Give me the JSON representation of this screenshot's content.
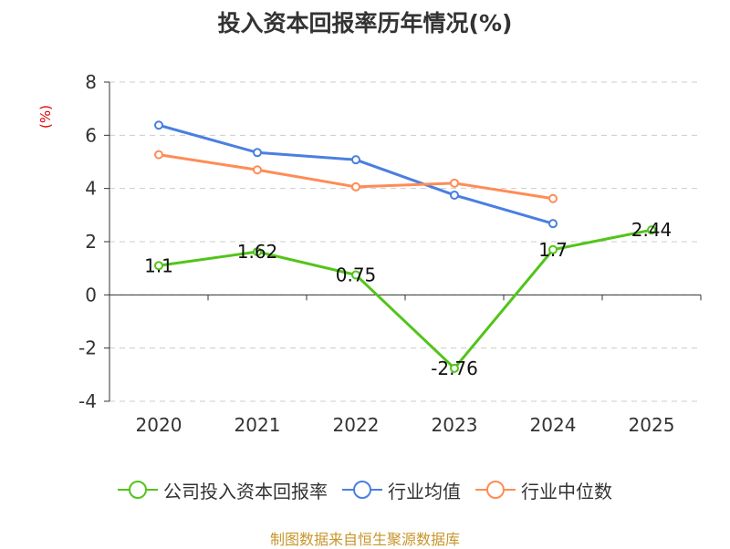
{
  "chart_data": {
    "type": "line",
    "title": "投入资本回报率历年情况(%)",
    "ylabel": "(%)",
    "xlabel": "",
    "categories": [
      "2020",
      "2021",
      "2022",
      "2023",
      "2024",
      "2025"
    ],
    "ylim": [
      -4,
      8
    ],
    "yticks": [
      -4,
      -2,
      0,
      2,
      4,
      6,
      8
    ],
    "grid": true,
    "legend_position": "bottom",
    "series": [
      {
        "name": "公司投入资本回报率",
        "color": "#52c41a",
        "values": [
          1.1,
          1.62,
          0.75,
          -2.76,
          1.7,
          2.44
        ],
        "labels": [
          "1.1",
          "1.62",
          "0.75",
          "-2.76",
          "1.7",
          "2.44"
        ]
      },
      {
        "name": "行业均值",
        "color": "#4a7fe0",
        "values": [
          6.38,
          5.35,
          5.08,
          3.75,
          2.68,
          null
        ]
      },
      {
        "name": "行业中位数",
        "color": "#ff8c55",
        "values": [
          5.27,
          4.7,
          4.06,
          4.2,
          3.62,
          null
        ]
      }
    ]
  },
  "source": "制图数据来自恒生聚源数据库"
}
